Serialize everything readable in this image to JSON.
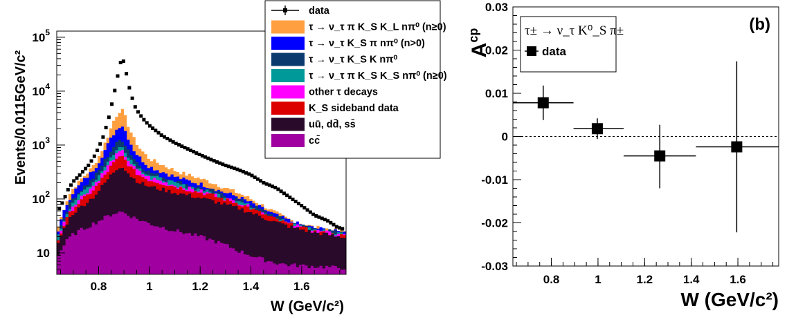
{
  "chart_data": [
    {
      "type": "area",
      "panel": "left",
      "xlabel": "W (GeV/c²)",
      "ylabel": "Events/0.0115GeV/c²",
      "xlim": [
        0.635,
        1.775
      ],
      "ylim": [
        4,
        130000
      ],
      "y_scale": "log",
      "x_ticks": [
        "0.8",
        "1",
        "1.2",
        "1.4",
        "1.6"
      ],
      "y_tick_labels": [
        {
          "value": 100000,
          "label": "10",
          "exp": "5"
        },
        {
          "value": 10000,
          "label": "10",
          "exp": "4"
        },
        {
          "value": 1000,
          "label": "10",
          "exp": "3"
        },
        {
          "value": 100,
          "label": "10",
          "exp": "2"
        },
        {
          "value": 10,
          "label": "10",
          "exp": ""
        }
      ],
      "legend_position": "top-right",
      "x": [
        0.64,
        0.66,
        0.68,
        0.7,
        0.72,
        0.74,
        0.76,
        0.78,
        0.8,
        0.82,
        0.84,
        0.86,
        0.88,
        0.89,
        0.9,
        0.92,
        0.94,
        0.96,
        0.98,
        1.0,
        1.05,
        1.1,
        1.15,
        1.2,
        1.25,
        1.3,
        1.35,
        1.4,
        1.45,
        1.5,
        1.55,
        1.6,
        1.65,
        1.7,
        1.72,
        1.74,
        1.76,
        1.77
      ],
      "series": [
        {
          "name": "data",
          "color": "#000000",
          "points": true,
          "values": [
            60,
            90,
            150,
            210,
            260,
            330,
            420,
            580,
            900,
            1500,
            3200,
            8500,
            25000,
            40000,
            35000,
            12000,
            5500,
            3800,
            2900,
            2300,
            1500,
            1100,
            850,
            660,
            520,
            420,
            350,
            280,
            200,
            160,
            110,
            75,
            50,
            40,
            35,
            30,
            28,
            28
          ]
        },
        {
          "name": "τ → ν_τ π K_S K_L nπ⁰ (n≥0)",
          "color": "#ff9f40",
          "values": [
            30,
            60,
            110,
            160,
            200,
            260,
            320,
            420,
            600,
            950,
            1600,
            2900,
            4200,
            4600,
            3900,
            2100,
            1300,
            900,
            700,
            560,
            430,
            340,
            280,
            240,
            200,
            160,
            130,
            100,
            75,
            55,
            42,
            35,
            30,
            28,
            27,
            26,
            25,
            25
          ]
        },
        {
          "name": "τ → ν_τ K_S π nπ⁰ (n>0)",
          "color": "#0000ff",
          "values": [
            26,
            52,
            92,
            135,
            170,
            220,
            270,
            350,
            480,
            730,
            1100,
            1650,
            2200,
            2400,
            2100,
            1250,
            800,
            600,
            480,
            400,
            320,
            260,
            220,
            190,
            160,
            130,
            110,
            85,
            65,
            50,
            40,
            33,
            29,
            27,
            26,
            25,
            24,
            24
          ]
        },
        {
          "name": "τ → ν_τ K_S K nπ⁰",
          "color": "#0a3a6e",
          "values": [
            22,
            42,
            72,
            105,
            130,
            165,
            200,
            250,
            330,
            480,
            680,
            950,
            1200,
            1300,
            1150,
            780,
            560,
            440,
            370,
            320,
            260,
            215,
            185,
            160,
            140,
            115,
            98,
            78,
            60,
            47,
            38,
            32,
            28,
            26,
            25,
            24,
            23,
            23
          ]
        },
        {
          "name": "τ → ν_τ π K_S K_S nπ⁰ (n≥0)",
          "color": "#009999",
          "values": [
            20,
            37,
            62,
            90,
            110,
            140,
            170,
            210,
            270,
            380,
            520,
            700,
            880,
            950,
            850,
            600,
            450,
            370,
            320,
            280,
            230,
            195,
            170,
            150,
            130,
            108,
            92,
            74,
            57,
            45,
            36,
            31,
            27,
            25,
            24,
            23,
            23,
            22
          ]
        },
        {
          "name": "other τ decays",
          "color": "#ff00ff",
          "values": [
            18,
            33,
            54,
            78,
            95,
            120,
            145,
            180,
            230,
            320,
            430,
            580,
            720,
            780,
            700,
            500,
            380,
            320,
            280,
            250,
            210,
            180,
            160,
            140,
            122,
            102,
            87,
            70,
            54,
            43,
            35,
            30,
            26,
            24,
            23,
            22,
            22,
            21
          ]
        },
        {
          "name": "K_S sideband data",
          "color": "#dd0000",
          "values": [
            17,
            30,
            48,
            68,
            82,
            100,
            120,
            150,
            190,
            260,
            350,
            470,
            580,
            630,
            570,
            420,
            330,
            280,
            250,
            225,
            195,
            170,
            150,
            133,
            116,
            97,
            83,
            67,
            52,
            42,
            34,
            29,
            25,
            23,
            22,
            21,
            21,
            20
          ]
        },
        {
          "name": "uū, dd̄, ss̄",
          "color": "#2a0a2a",
          "values": [
            15,
            26,
            40,
            55,
            65,
            78,
            92,
            110,
            140,
            185,
            245,
            320,
            390,
            420,
            380,
            290,
            235,
            205,
            185,
            170,
            150,
            132,
            118,
            105,
            92,
            78,
            68,
            56,
            45,
            37,
            31,
            27,
            24,
            22,
            21,
            20,
            20,
            19
          ]
        },
        {
          "name": "cc̄",
          "color": "#a000a0",
          "values": [
            9,
            13,
            18,
            22,
            25,
            28,
            31,
            35,
            39,
            44,
            49,
            54,
            57,
            58,
            56,
            50,
            45,
            41,
            38,
            35,
            30,
            26,
            23,
            20,
            17,
            14,
            11,
            9,
            7.5,
            6.5,
            6,
            5.8,
            5.6,
            5.5,
            5.4,
            5.3,
            5.3,
            5.3
          ]
        }
      ]
    },
    {
      "type": "scatter",
      "panel": "right",
      "ylabel_main": "A",
      "ylabel_sup": "cp",
      "xlabel": "W (GeV/c²)",
      "xlim": [
        0.635,
        1.775
      ],
      "ylim": [
        -0.03,
        0.03
      ],
      "x_ticks": [
        "0.8",
        "1",
        "1.2",
        "1.4",
        "1.6"
      ],
      "y_ticks": [
        "0.03",
        "0.02",
        "0.01",
        "0",
        "-0.01",
        "-0.02",
        "-0.03"
      ],
      "tag": "(b)",
      "annotation": "τ± → ν_τ K⁰_S π±",
      "reference_line": 0,
      "series": [
        {
          "name": "data",
          "points": [
            {
              "x": 0.765,
              "y": 0.0078,
              "xlo": 0.635,
              "xhi": 0.895,
              "ylo": 0.0038,
              "yhi": 0.0118
            },
            {
              "x": 0.997,
              "y": 0.0018,
              "xlo": 0.895,
              "xhi": 1.11,
              "ylo": -0.0006,
              "yhi": 0.0042
            },
            {
              "x": 1.265,
              "y": -0.0045,
              "xlo": 1.11,
              "xhi": 1.42,
              "ylo": -0.012,
              "yhi": 0.0027
            },
            {
              "x": 1.595,
              "y": -0.0024,
              "xlo": 1.42,
              "xhi": 1.775,
              "ylo": -0.0222,
              "yhi": 0.0174
            }
          ]
        }
      ]
    }
  ]
}
